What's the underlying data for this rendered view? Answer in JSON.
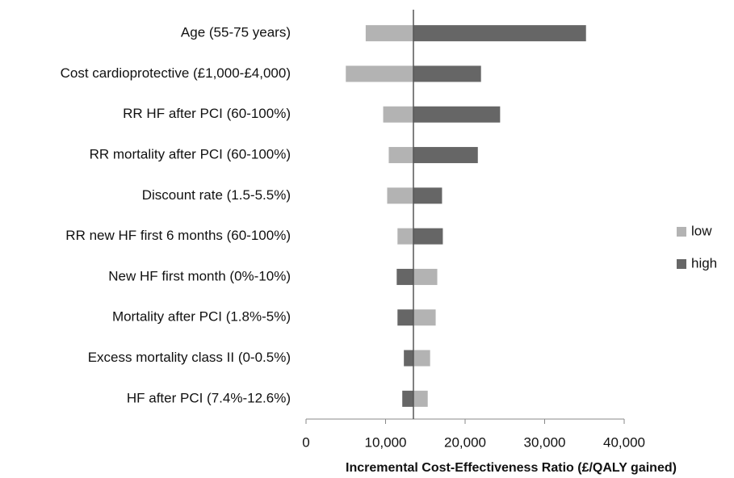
{
  "chart_data": {
    "type": "tornado",
    "x_label": "Incremental Cost-Effectiveness Ratio (£/QALY gained)",
    "categories": [
      "Age (55-75 years)",
      "Cost cardioprotective (£1,000-£4,000)",
      "RR HF after PCI (60-100%)",
      "RR mortality after PCI (60-100%)",
      "Discount rate (1.5-5.5%)",
      "RR new HF first 6 months (60-100%)",
      "New HF first month (0%-10%)",
      "Mortality after PCI (1.8%-5%)",
      "Excess mortality class II (0-0.5%)",
      "HF after PCI (7.4%-12.6%)"
    ],
    "base": 13500,
    "series": [
      {
        "name": "low",
        "color": "#b3b3b3",
        "values": [
          7500,
          5000,
          9700,
          10400,
          10200,
          11500,
          16500,
          16300,
          15600,
          15300
        ]
      },
      {
        "name": "high",
        "color": "#666666",
        "values": [
          35200,
          22000,
          24400,
          21600,
          17100,
          17200,
          11400,
          11500,
          12300,
          12100
        ]
      }
    ],
    "xlim": [
      0,
      40000
    ],
    "xticks": [
      0,
      {
        "value": 10000,
        "label": "10,000"
      },
      {
        "value": 20000,
        "label": "20,000"
      },
      {
        "value": 30000,
        "label": "30,000"
      },
      {
        "value": 40000,
        "label": "40,000"
      }
    ],
    "legend": "right"
  }
}
